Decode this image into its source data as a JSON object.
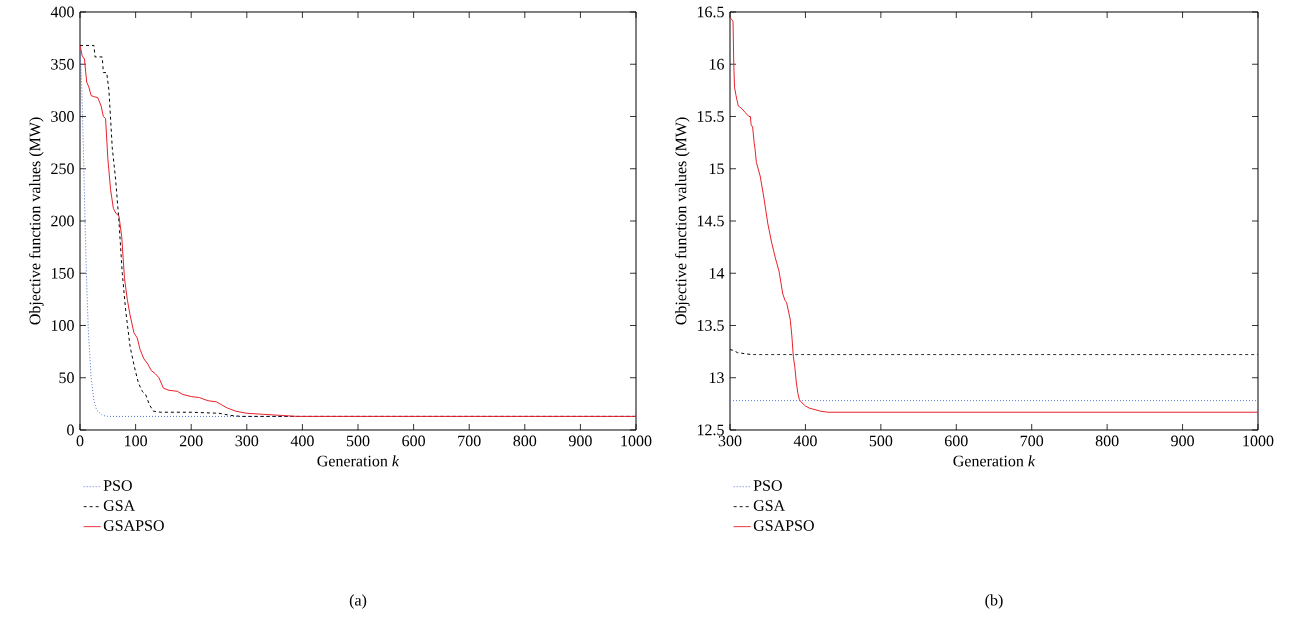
{
  "chart_data": [
    {
      "type": "line",
      "xlabel": "Generation *k*",
      "ylabel": "Objective function values (MW)",
      "annotations": [
        "(a)"
      ],
      "legend": "bottom",
      "grid": false,
      "xlim": [
        0,
        1000
      ],
      "ylim": [
        0,
        400
      ],
      "xticks": [
        0,
        100,
        200,
        300,
        400,
        500,
        600,
        700,
        800,
        900,
        1000
      ],
      "yticks": [
        0,
        50,
        100,
        150,
        200,
        250,
        300,
        350,
        400
      ],
      "series": [
        {
          "name": "PSO",
          "color": "#4a6fd0",
          "line_style": "dotted",
          "x": [
            0,
            3,
            6,
            9,
            12,
            15,
            20,
            25,
            30,
            40,
            50,
            70,
            100,
            1000
          ],
          "values": [
            368,
            330,
            270,
            200,
            140,
            95,
            50,
            28,
            19,
            14,
            13,
            13,
            13,
            13
          ]
        },
        {
          "name": "GSA",
          "color": "#000000",
          "line_style": "dashed",
          "x": [
            0,
            25,
            27,
            40,
            42,
            48,
            52,
            58,
            64,
            70,
            76,
            82,
            90,
            98,
            105,
            112,
            118,
            125,
            132,
            145,
            200,
            250,
            270,
            290,
            310,
            1000
          ],
          "values": [
            368,
            368,
            357,
            357,
            342,
            342,
            325,
            270,
            240,
            200,
            150,
            115,
            80,
            60,
            45,
            37,
            34,
            24,
            18,
            17,
            17,
            16,
            14,
            13,
            13,
            13
          ]
        },
        {
          "name": "GSAPSO",
          "color": "#e8202a",
          "line_style": "solid",
          "x": [
            0,
            4,
            8,
            12,
            16,
            20,
            25,
            32,
            38,
            42,
            46,
            50,
            55,
            60,
            65,
            70,
            75,
            80,
            85,
            90,
            97,
            103,
            108,
            115,
            122,
            128,
            135,
            142,
            150,
            160,
            175,
            185,
            200,
            215,
            230,
            245,
            255,
            265,
            280,
            300,
            330,
            360,
            390,
            420,
            1000
          ],
          "values": [
            368,
            358,
            355,
            333,
            328,
            320,
            319,
            318,
            310,
            300,
            298,
            260,
            230,
            212,
            207,
            205,
            185,
            145,
            125,
            110,
            93,
            88,
            77,
            68,
            63,
            57,
            54,
            50,
            40,
            38,
            37,
            34,
            32,
            31,
            28,
            27,
            24,
            21,
            18,
            16,
            15,
            14,
            13,
            13,
            13
          ]
        }
      ]
    },
    {
      "type": "line",
      "xlabel": "Generation *k*",
      "ylabel": "Objective function values (MW)",
      "annotations": [
        "(b)"
      ],
      "legend": "bottom",
      "grid": false,
      "xlim": [
        300,
        1000
      ],
      "ylim": [
        12.5,
        16.5
      ],
      "xticks": [
        300,
        400,
        500,
        600,
        700,
        800,
        900,
        1000
      ],
      "yticks": [
        12.5,
        13,
        13.5,
        14,
        14.5,
        15,
        15.5,
        16,
        16.5
      ],
      "series": [
        {
          "name": "PSO",
          "color": "#4a6fd0",
          "line_style": "dotted",
          "x": [
            300,
            1000
          ],
          "values": [
            12.78,
            12.78
          ]
        },
        {
          "name": "GSA",
          "color": "#000000",
          "line_style": "dashed",
          "x": [
            300,
            305,
            310,
            320,
            330,
            340,
            400,
            1000
          ],
          "values": [
            13.27,
            13.26,
            13.24,
            13.23,
            13.22,
            13.22,
            13.22,
            13.22
          ]
        },
        {
          "name": "GSAPSO",
          "color": "#e8202a",
          "line_style": "solid",
          "x": [
            300,
            302,
            304,
            305,
            306,
            308,
            311,
            315,
            320,
            325,
            327,
            328,
            330,
            332,
            333,
            335,
            340,
            345,
            350,
            355,
            360,
            365,
            370,
            373,
            375,
            378,
            380,
            382,
            384,
            386,
            388,
            390,
            392,
            394,
            397,
            400,
            405,
            410,
            420,
            430,
            450,
            500,
            700,
            1000
          ],
          "values": [
            16.45,
            16.43,
            16.41,
            16.0,
            15.78,
            15.7,
            15.6,
            15.58,
            15.54,
            15.5,
            15.5,
            15.42,
            15.4,
            15.25,
            15.2,
            15.06,
            14.93,
            14.72,
            14.48,
            14.3,
            14.15,
            14.02,
            13.8,
            13.74,
            13.72,
            13.62,
            13.55,
            13.4,
            13.2,
            13.1,
            12.95,
            12.85,
            12.79,
            12.77,
            12.75,
            12.73,
            12.71,
            12.7,
            12.68,
            12.67,
            12.67,
            12.67,
            12.67,
            12.67
          ]
        }
      ]
    }
  ]
}
